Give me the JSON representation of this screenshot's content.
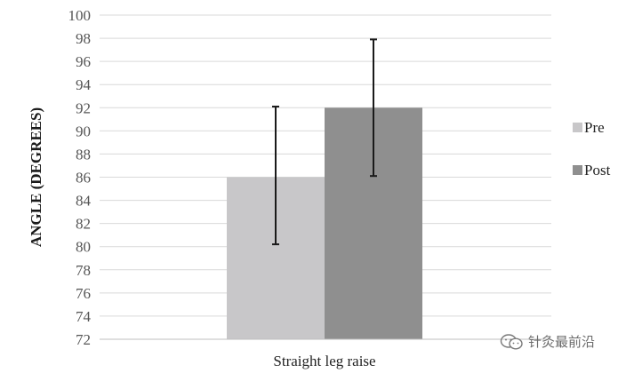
{
  "chart_data": {
    "type": "bar",
    "categories": [
      "Straight leg raise"
    ],
    "series": [
      {
        "name": "Pre",
        "values": [
          86
        ],
        "error": [
          [
            80.2,
            92.1
          ]
        ],
        "color": "#c8c7c9"
      },
      {
        "name": "Post",
        "values": [
          92
        ],
        "error": [
          [
            86.1,
            97.9
          ]
        ],
        "color": "#8f8f8f"
      }
    ],
    "title": "",
    "xlabel": "",
    "ylabel": "ANGLE (DEGREES)",
    "ylim": [
      72,
      100
    ],
    "yticks": [
      72,
      74,
      76,
      78,
      80,
      82,
      84,
      86,
      88,
      90,
      92,
      94,
      96,
      98,
      100
    ],
    "grid": true,
    "legend_position": "right"
  },
  "watermark": {
    "text": "针灸最前沿",
    "icon": "wechat-icon"
  },
  "colors": {
    "grid": "#d9d9d9",
    "axis": "#bfbfbf",
    "error_bar": "#1a1a1a"
  }
}
